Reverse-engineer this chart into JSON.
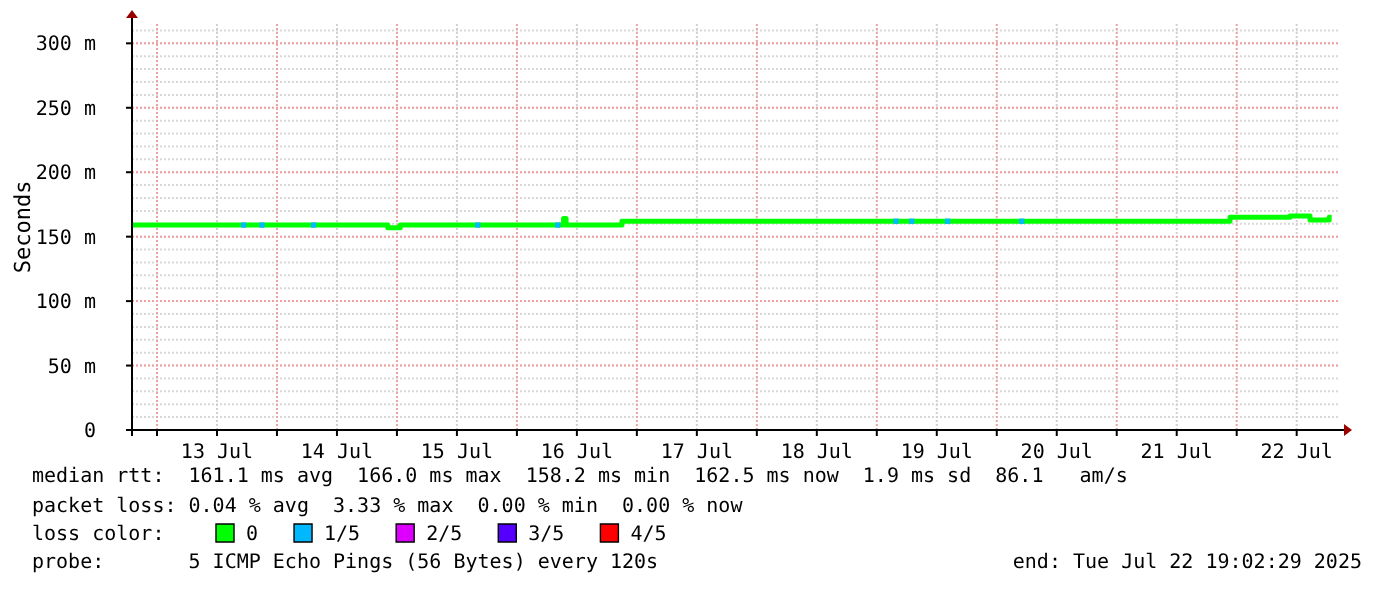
{
  "chart_data": {
    "type": "step",
    "ylabel": "Seconds",
    "legend": "bottom",
    "legend_title": "loss color:",
    "grid": true,
    "line_style": "solid",
    "xlim": [
      "2025-07-12T19:00",
      "2025-07-22T20:40"
    ],
    "xticks": [
      {
        "value": "2025-07-13T00:00",
        "label": null
      },
      {
        "value": "2025-07-13T12:00",
        "label": "13 Jul"
      },
      {
        "value": "2025-07-14T00:00",
        "label": null
      },
      {
        "value": "2025-07-14T12:00",
        "label": "14 Jul"
      },
      {
        "value": "2025-07-15T00:00",
        "label": null
      },
      {
        "value": "2025-07-15T12:00",
        "label": "15 Jul"
      },
      {
        "value": "2025-07-16T00:00",
        "label": null
      },
      {
        "value": "2025-07-16T12:00",
        "label": "16 Jul"
      },
      {
        "value": "2025-07-17T00:00",
        "label": null
      },
      {
        "value": "2025-07-17T12:00",
        "label": "17 Jul"
      },
      {
        "value": "2025-07-18T00:00",
        "label": null
      },
      {
        "value": "2025-07-18T12:00",
        "label": "18 Jul"
      },
      {
        "value": "2025-07-19T00:00",
        "label": null
      },
      {
        "value": "2025-07-19T12:00",
        "label": "19 Jul"
      },
      {
        "value": "2025-07-20T00:00",
        "label": null
      },
      {
        "value": "2025-07-20T12:00",
        "label": "20 Jul"
      },
      {
        "value": "2025-07-21T00:00",
        "label": null
      },
      {
        "value": "2025-07-21T12:00",
        "label": "21 Jul"
      },
      {
        "value": "2025-07-22T00:00",
        "label": null
      },
      {
        "value": "2025-07-22T12:00",
        "label": "22 Jul"
      }
    ],
    "ylim": [
      0,
      315
    ],
    "yticks": [
      0,
      {
        "value": 50,
        "label": "50 m"
      },
      {
        "value": 100,
        "label": "100 m"
      },
      {
        "value": 150,
        "label": "150 m"
      },
      {
        "value": 200,
        "label": "200 m"
      },
      {
        "value": 250,
        "label": "250 m"
      },
      {
        "value": 300,
        "label": "300 m"
      }
    ],
    "series": [
      {
        "name": "0",
        "color": "#00ff00",
        "x": [
          "2025-07-12T19:00",
          "2025-07-14T22:10",
          "2025-07-15T00:40",
          "2025-07-16T09:20",
          "2025-07-16T09:50",
          "2025-07-16T21:00",
          "2025-07-21T22:40",
          "2025-07-22T10:40",
          "2025-07-22T14:40",
          "2025-07-22T18:30",
          "2025-07-22T19:00"
        ],
        "values": [
          159,
          157,
          159,
          164,
          159,
          162,
          165,
          166,
          163,
          165,
          165
        ]
      },
      {
        "name": "1/5",
        "type": "scatter",
        "marker": "square",
        "color": "#00b8ff",
        "x": [
          "2025-07-13T17:20",
          "2025-07-13T21:00",
          "2025-07-14T07:20",
          "2025-07-15T16:10",
          "2025-07-16T08:10",
          "2025-07-19T03:50",
          "2025-07-19T07:00",
          "2025-07-19T14:10",
          "2025-07-20T05:00"
        ],
        "values": [
          159,
          159,
          159,
          159,
          159,
          162,
          162,
          162,
          162
        ]
      },
      {
        "name": "2/5",
        "type": "scatter",
        "marker": "square",
        "color": "#dd00ff"
      },
      {
        "name": "3/5",
        "type": "scatter",
        "marker": "square",
        "color": "#5500ff"
      },
      {
        "name": "4/5",
        "type": "scatter",
        "marker": "square",
        "color": "#ff0000"
      }
    ],
    "annotations": [
      "median rtt:  161.1 ms avg  166.0 ms max  158.2 ms min  162.5 ms now  1.9 ms sd  86.1   am/s",
      "packet loss: 0.04 % avg  3.33 % max  0.00 % min  0.00 % now",
      "probe:       5 ICMP Echo Pings (56 Bytes) every 120s",
      "end: Tue Jul 22 19:02:29 2025"
    ]
  }
}
